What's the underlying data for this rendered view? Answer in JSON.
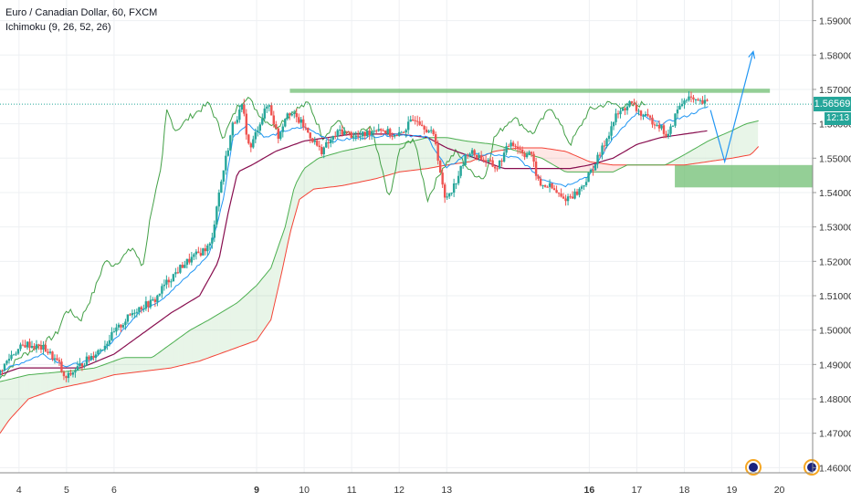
{
  "legend": {
    "title": "Euro / Canadian Dollar, 60, FXCM",
    "indicator": "Ichimoku (9, 26, 52, 26)"
  },
  "price_label": "1.56569",
  "countdown_label": "12:13",
  "colors": {
    "up": "#26a69a",
    "down": "#ef5350",
    "tenkan": "#2196f3",
    "kijun": "#880e4f",
    "span_a": "#4caf50",
    "span_b": "#f44336",
    "chikou": "#43a047",
    "zone": "#66bb6a",
    "arrow": "#2196f3",
    "price_line": "#26a69a"
  },
  "chart_data": {
    "type": "candlestick",
    "title": "Euro / Canadian Dollar, 60, FXCM",
    "indicator": "Ichimoku (9, 26, 52, 26)",
    "last_price": 1.56569,
    "ylim": [
      1.4585,
      1.596
    ],
    "y_ticks": [
      "1.46000",
      "1.47000",
      "1.48000",
      "1.49000",
      "1.50000",
      "1.51000",
      "1.52000",
      "1.53000",
      "1.54000",
      "1.55000",
      "1.56000",
      "1.57000",
      "1.58000",
      "1.59000"
    ],
    "x_ticks": [
      {
        "label": "4",
        "day": 4
      },
      {
        "label": "5",
        "day": 5
      },
      {
        "label": "6",
        "day": 6
      },
      {
        "label": "9",
        "day": 9,
        "bold": true
      },
      {
        "label": "10",
        "day": 10
      },
      {
        "label": "11",
        "day": 11
      },
      {
        "label": "12",
        "day": 12
      },
      {
        "label": "13",
        "day": 13
      },
      {
        "label": "16",
        "day": 16,
        "bold": true
      },
      {
        "label": "17",
        "day": 17
      },
      {
        "label": "18",
        "day": 18
      },
      {
        "label": "19",
        "day": 19
      },
      {
        "label": "20",
        "day": 20
      }
    ],
    "resistance_zone": {
      "day_from": 9.7,
      "day_to": 19.8,
      "price_low": 1.569,
      "price_high": 1.5702
    },
    "support_zone": {
      "day_from": 17.8,
      "day_to": 20.7,
      "price_low": 1.5415,
      "price_high": 1.548
    },
    "projection_path": [
      {
        "day": 18.55,
        "price": 1.564
      },
      {
        "day": 18.85,
        "price": 1.549
      },
      {
        "day": 19.45,
        "price": 1.581
      }
    ],
    "price_anchors": [
      [
        3.6,
        1.487
      ],
      [
        3.9,
        1.493
      ],
      [
        4.2,
        1.496
      ],
      [
        4.6,
        1.4945
      ],
      [
        4.9,
        1.49
      ],
      [
        5.0,
        1.4855
      ],
      [
        5.4,
        1.4905
      ],
      [
        5.8,
        1.495
      ],
      [
        6.1,
        1.5
      ],
      [
        6.5,
        1.506
      ],
      [
        6.9,
        1.5085
      ],
      [
        7.1,
        1.513
      ],
      [
        7.5,
        1.519
      ],
      [
        7.9,
        1.523
      ],
      [
        8.1,
        1.525
      ],
      [
        8.2,
        1.536
      ],
      [
        8.4,
        1.55
      ],
      [
        8.55,
        1.56
      ],
      [
        8.75,
        1.565
      ],
      [
        8.9,
        1.552
      ],
      [
        9.1,
        1.56
      ],
      [
        9.3,
        1.566
      ],
      [
        9.5,
        1.556
      ],
      [
        9.7,
        1.564
      ],
      [
        10.0,
        1.56
      ],
      [
        10.4,
        1.552
      ],
      [
        10.8,
        1.558
      ],
      [
        11.2,
        1.556
      ],
      [
        11.6,
        1.559
      ],
      [
        12.0,
        1.556
      ],
      [
        12.4,
        1.562
      ],
      [
        12.8,
        1.556
      ],
      [
        13.0,
        1.538
      ],
      [
        13.2,
        1.542
      ],
      [
        13.5,
        1.552
      ],
      [
        13.8,
        1.55
      ],
      [
        14.1,
        1.547
      ],
      [
        14.4,
        1.555
      ],
      [
        14.7,
        1.551
      ],
      [
        14.8,
        1.552
      ],
      [
        15.0,
        1.542
      ],
      [
        15.2,
        1.542
      ],
      [
        15.5,
        1.538
      ],
      [
        15.8,
        1.54
      ],
      [
        16.0,
        1.544
      ],
      [
        16.3,
        1.552
      ],
      [
        16.6,
        1.562
      ],
      [
        16.9,
        1.566
      ],
      [
        17.2,
        1.562
      ],
      [
        17.5,
        1.56
      ],
      [
        17.7,
        1.556
      ],
      [
        17.9,
        1.564
      ],
      [
        18.1,
        1.568
      ],
      [
        18.3,
        1.566
      ],
      [
        18.5,
        1.566
      ]
    ],
    "tenkan_anchors": [
      [
        3.6,
        1.488
      ],
      [
        4.5,
        1.493
      ],
      [
        5.0,
        1.4895
      ],
      [
        5.5,
        1.491
      ],
      [
        6.0,
        1.497
      ],
      [
        6.5,
        1.505
      ],
      [
        7.0,
        1.509
      ],
      [
        7.5,
        1.515
      ],
      [
        8.0,
        1.522
      ],
      [
        8.3,
        1.538
      ],
      [
        8.5,
        1.556
      ],
      [
        8.8,
        1.56
      ],
      [
        9.2,
        1.556
      ],
      [
        9.6,
        1.558
      ],
      [
        10.0,
        1.559
      ],
      [
        10.6,
        1.555
      ],
      [
        11.2,
        1.556
      ],
      [
        12.0,
        1.557
      ],
      [
        12.6,
        1.556
      ],
      [
        13.0,
        1.547
      ],
      [
        13.4,
        1.551
      ],
      [
        14.0,
        1.551
      ],
      [
        14.5,
        1.55
      ],
      [
        15.0,
        1.544
      ],
      [
        15.5,
        1.542
      ],
      [
        16.0,
        1.545
      ],
      [
        16.5,
        1.556
      ],
      [
        17.0,
        1.563
      ],
      [
        17.5,
        1.56
      ],
      [
        18.0,
        1.562
      ],
      [
        18.5,
        1.565
      ]
    ],
    "kijun_anchors": [
      [
        3.6,
        1.487
      ],
      [
        4.0,
        1.489
      ],
      [
        4.8,
        1.489
      ],
      [
        5.3,
        1.489
      ],
      [
        6.0,
        1.493
      ],
      [
        6.5,
        1.498
      ],
      [
        7.2,
        1.505
      ],
      [
        7.8,
        1.51
      ],
      [
        8.2,
        1.52
      ],
      [
        8.4,
        1.534
      ],
      [
        8.6,
        1.546
      ],
      [
        8.9,
        1.548
      ],
      [
        9.4,
        1.552
      ],
      [
        10.0,
        1.555
      ],
      [
        11.0,
        1.557
      ],
      [
        12.0,
        1.557
      ],
      [
        12.6,
        1.556
      ],
      [
        13.0,
        1.553
      ],
      [
        13.6,
        1.55
      ],
      [
        14.2,
        1.547
      ],
      [
        15.0,
        1.547
      ],
      [
        15.6,
        1.547
      ],
      [
        16.0,
        1.548
      ],
      [
        16.5,
        1.55
      ],
      [
        17.0,
        1.554
      ],
      [
        17.5,
        1.556
      ],
      [
        18.0,
        1.557
      ],
      [
        18.5,
        1.558
      ]
    ],
    "span_a_anchors": [
      [
        3.6,
        1.485
      ],
      [
        4.2,
        1.487
      ],
      [
        5.0,
        1.488
      ],
      [
        5.6,
        1.489
      ],
      [
        6.2,
        1.492
      ],
      [
        6.8,
        1.492
      ],
      [
        7.2,
        1.496
      ],
      [
        7.6,
        1.5
      ],
      [
        8.0,
        1.503
      ],
      [
        8.6,
        1.508
      ],
      [
        9.0,
        1.513
      ],
      [
        9.3,
        1.518
      ],
      [
        9.6,
        1.53
      ],
      [
        9.8,
        1.542
      ],
      [
        10.0,
        1.547
      ],
      [
        10.3,
        1.55
      ],
      [
        10.8,
        1.552
      ],
      [
        11.5,
        1.554
      ],
      [
        12.0,
        1.554
      ],
      [
        12.6,
        1.556
      ],
      [
        13.0,
        1.556
      ],
      [
        13.4,
        1.555
      ],
      [
        14.0,
        1.554
      ],
      [
        14.5,
        1.552
      ],
      [
        15.0,
        1.55
      ],
      [
        15.5,
        1.546
      ],
      [
        16.0,
        1.546
      ],
      [
        16.5,
        1.546
      ],
      [
        16.8,
        1.548
      ],
      [
        17.2,
        1.548
      ],
      [
        17.6,
        1.548
      ],
      [
        18.0,
        1.551
      ],
      [
        18.5,
        1.555
      ],
      [
        19.0,
        1.558
      ],
      [
        19.3,
        1.56
      ],
      [
        19.6,
        1.561
      ]
    ],
    "span_b_anchors": [
      [
        3.6,
        1.47
      ],
      [
        3.8,
        1.474
      ],
      [
        4.2,
        1.48
      ],
      [
        4.8,
        1.483
      ],
      [
        5.5,
        1.485
      ],
      [
        6.0,
        1.487
      ],
      [
        6.6,
        1.488
      ],
      [
        7.2,
        1.489
      ],
      [
        7.8,
        1.491
      ],
      [
        8.4,
        1.494
      ],
      [
        9.0,
        1.497
      ],
      [
        9.3,
        1.503
      ],
      [
        9.5,
        1.515
      ],
      [
        9.7,
        1.528
      ],
      [
        9.9,
        1.538
      ],
      [
        10.2,
        1.541
      ],
      [
        10.8,
        1.542
      ],
      [
        11.5,
        1.544
      ],
      [
        12.0,
        1.546
      ],
      [
        12.6,
        1.547
      ],
      [
        13.0,
        1.548
      ],
      [
        13.5,
        1.549
      ],
      [
        14.0,
        1.552
      ],
      [
        14.5,
        1.553
      ],
      [
        15.0,
        1.553
      ],
      [
        15.5,
        1.552
      ],
      [
        16.0,
        1.549
      ],
      [
        16.5,
        1.548
      ],
      [
        17.0,
        1.548
      ],
      [
        17.5,
        1.548
      ],
      [
        18.0,
        1.548
      ],
      [
        18.5,
        1.549
      ],
      [
        19.0,
        1.55
      ],
      [
        19.4,
        1.551
      ],
      [
        19.6,
        1.554
      ]
    ],
    "chikou_anchors": [
      [
        3.6,
        1.486
      ],
      [
        4.0,
        1.492
      ],
      [
        4.5,
        1.496
      ],
      [
        4.8,
        1.499
      ],
      [
        5.0,
        1.506
      ],
      [
        5.3,
        1.503
      ],
      [
        5.6,
        1.512
      ],
      [
        5.8,
        1.52
      ],
      [
        6.0,
        1.519
      ],
      [
        6.4,
        1.524
      ],
      [
        6.6,
        1.518
      ],
      [
        6.8,
        1.536
      ],
      [
        7.0,
        1.547
      ],
      [
        7.1,
        1.564
      ],
      [
        7.3,
        1.558
      ],
      [
        7.6,
        1.562
      ],
      [
        8.0,
        1.566
      ],
      [
        8.3,
        1.556
      ],
      [
        8.6,
        1.565
      ],
      [
        8.8,
        1.568
      ],
      [
        9.1,
        1.562
      ],
      [
        9.4,
        1.559
      ],
      [
        9.8,
        1.564
      ],
      [
        10.1,
        1.566
      ],
      [
        10.4,
        1.556
      ],
      [
        10.7,
        1.561
      ],
      [
        11.0,
        1.556
      ],
      [
        11.4,
        1.559
      ],
      [
        11.8,
        1.538
      ],
      [
        12.0,
        1.552
      ],
      [
        12.3,
        1.556
      ],
      [
        12.6,
        1.538
      ],
      [
        12.9,
        1.547
      ],
      [
        13.2,
        1.552
      ],
      [
        13.5,
        1.546
      ],
      [
        13.8,
        1.544
      ],
      [
        14.0,
        1.556
      ],
      [
        14.4,
        1.562
      ],
      [
        14.8,
        1.557
      ],
      [
        15.2,
        1.565
      ],
      [
        15.6,
        1.554
      ],
      [
        16.0,
        1.564
      ],
      [
        16.4,
        1.566
      ],
      [
        16.8,
        1.565
      ],
      [
        17.2,
        1.566
      ]
    ],
    "x_range_days": [
      3.6,
      20.7
    ]
  }
}
